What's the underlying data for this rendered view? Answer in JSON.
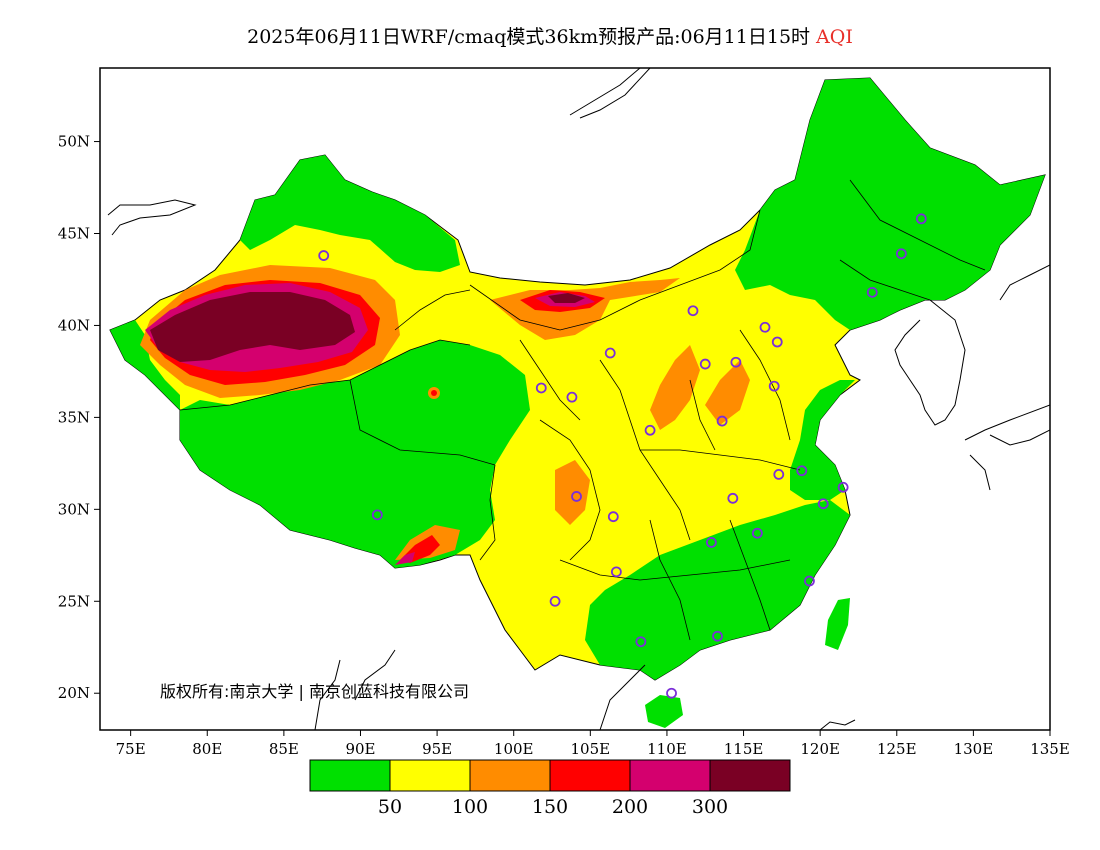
{
  "title": {
    "main": "2025年06月11日WRF/cmaq模式36km预报产品:06月11日15时",
    "variable": "AQI"
  },
  "axes": {
    "lat_labels": [
      "50N",
      "45N",
      "40N",
      "35N",
      "30N",
      "25N",
      "20N"
    ],
    "lat_values": [
      50,
      45,
      40,
      35,
      30,
      25,
      20
    ],
    "lon_labels": [
      "75E",
      "80E",
      "85E",
      "90E",
      "95E",
      "100E",
      "105E",
      "110E",
      "115E",
      "120E",
      "125E",
      "130E",
      "135E"
    ],
    "lon_values": [
      75,
      80,
      85,
      90,
      95,
      100,
      105,
      110,
      115,
      120,
      125,
      130,
      135
    ],
    "lon_range": [
      73,
      135
    ],
    "lat_range": [
      18,
      54
    ]
  },
  "copyright": "版权所有:南京大学 | 南京创蓝科技有限公司",
  "legend": {
    "colors": [
      "#00e000",
      "#ffff00",
      "#ff8c00",
      "#ff0000",
      "#d4006e",
      "#7a0024"
    ],
    "labels": [
      "50",
      "100",
      "150",
      "200",
      "300"
    ]
  },
  "stations": [
    [
      87.6,
      43.8
    ],
    [
      126.6,
      45.8
    ],
    [
      125.3,
      43.9
    ],
    [
      123.4,
      41.8
    ],
    [
      111.7,
      40.8
    ],
    [
      116.4,
      39.9
    ],
    [
      117.2,
      39.1
    ],
    [
      106.3,
      38.5
    ],
    [
      112.5,
      37.9
    ],
    [
      114.5,
      38.0
    ],
    [
      101.8,
      36.6
    ],
    [
      103.8,
      36.1
    ],
    [
      117.0,
      36.7
    ],
    [
      108.9,
      34.3
    ],
    [
      113.6,
      34.8
    ],
    [
      91.1,
      29.7
    ],
    [
      104.1,
      30.7
    ],
    [
      106.5,
      29.6
    ],
    [
      114.3,
      30.6
    ],
    [
      117.3,
      31.9
    ],
    [
      118.8,
      32.1
    ],
    [
      120.2,
      30.3
    ],
    [
      121.5,
      31.2
    ],
    [
      112.9,
      28.2
    ],
    [
      115.9,
      28.7
    ],
    [
      119.3,
      26.1
    ],
    [
      106.7,
      26.6
    ],
    [
      102.7,
      25.0
    ],
    [
      108.3,
      22.8
    ],
    [
      113.3,
      23.1
    ],
    [
      110.3,
      20.0
    ]
  ]
}
